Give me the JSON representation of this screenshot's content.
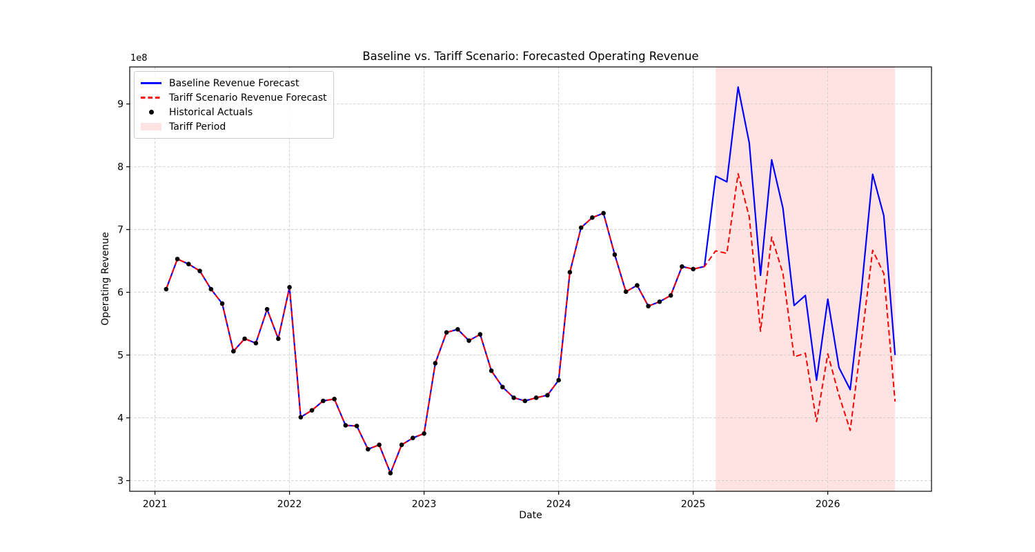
{
  "chart_data": {
    "type": "line",
    "title": "Baseline vs. Tariff Scenario: Forecasted Operating Revenue",
    "xlabel": "Date",
    "ylabel": "Operating Revenue",
    "y_offset_label": "1e8",
    "y_unit_multiplier": 100000000.0,
    "legend": [
      {
        "label": "Baseline Revenue Forecast",
        "swatch": "line",
        "color": "#0000ff"
      },
      {
        "label": "Tariff Scenario Revenue Forecast",
        "swatch": "dashes",
        "color": "#ff0000"
      },
      {
        "label": "Historical Actuals",
        "swatch": "dot",
        "color": "#000000"
      },
      {
        "label": "Tariff Period",
        "swatch": "patch",
        "color": "#ffe3e3"
      }
    ],
    "legend_position": "upper left",
    "axes": {
      "xticks": [
        "2021",
        "2022",
        "2023",
        "2024",
        "2025",
        "2026"
      ],
      "yticks": [
        "3",
        "4",
        "5",
        "6",
        "7",
        "8",
        "9"
      ],
      "ylim": [
        2.83,
        9.59
      ],
      "xlim_months_from_2021_01": [
        -3.25,
        68.25
      ],
      "grid": true,
      "grid_style": "dashed"
    },
    "tariff_period": {
      "start": "2025-02",
      "end": "2026-06"
    },
    "colors": {
      "baseline_line": "#0000ff",
      "tariff_line": "#ff0000",
      "historical_dot": "#000000",
      "tariff_band": "#ffe3e3",
      "grid": "#cccccc",
      "spine": "#000000",
      "text": "#000000"
    },
    "series": {
      "historical": {
        "name": "Historical Actuals",
        "dates": [
          "2021-01",
          "2021-02",
          "2021-03",
          "2021-04",
          "2021-05",
          "2021-06",
          "2021-07",
          "2021-08",
          "2021-09",
          "2021-10",
          "2021-11",
          "2021-12",
          "2022-01",
          "2022-02",
          "2022-03",
          "2022-04",
          "2022-05",
          "2022-06",
          "2022-07",
          "2022-08",
          "2022-09",
          "2022-10",
          "2022-11",
          "2022-12",
          "2023-01",
          "2023-02",
          "2023-03",
          "2023-04",
          "2023-05",
          "2023-06",
          "2023-07",
          "2023-08",
          "2023-09",
          "2023-10",
          "2023-11",
          "2023-12",
          "2024-01",
          "2024-02",
          "2024-03",
          "2024-04",
          "2024-05",
          "2024-06",
          "2024-07",
          "2024-08",
          "2024-09",
          "2024-10",
          "2024-11",
          "2024-12"
        ],
        "values_1e8": [
          6.05,
          6.53,
          6.45,
          6.34,
          6.05,
          5.82,
          5.06,
          5.26,
          5.19,
          5.73,
          5.26,
          6.08,
          4.01,
          4.12,
          4.27,
          4.3,
          3.88,
          3.87,
          3.5,
          3.57,
          3.12,
          3.57,
          3.68,
          3.75,
          4.87,
          5.36,
          5.41,
          5.23,
          5.33,
          4.75,
          4.49,
          4.32,
          4.27,
          4.32,
          4.36,
          4.6,
          6.32,
          7.03,
          7.19,
          7.26,
          6.6,
          6.01,
          6.11,
          5.78,
          5.85,
          5.95,
          6.41,
          6.37
        ]
      },
      "baseline_forecast": {
        "name": "Baseline Revenue Forecast",
        "dates": [
          "2025-01",
          "2025-02",
          "2025-03",
          "2025-04",
          "2025-05",
          "2025-06",
          "2025-07",
          "2025-08",
          "2025-09",
          "2025-10",
          "2025-11",
          "2025-12",
          "2026-01",
          "2026-02",
          "2026-03",
          "2026-04",
          "2026-05",
          "2026-06"
        ],
        "values_1e8": [
          6.41,
          7.85,
          7.76,
          9.27,
          8.38,
          6.27,
          8.11,
          7.34,
          5.79,
          5.95,
          4.6,
          5.89,
          4.8,
          4.45,
          6.02,
          7.88,
          7.22,
          5.0
        ]
      },
      "tariff_forecast": {
        "name": "Tariff Scenario Revenue Forecast",
        "dates": [
          "2025-01",
          "2025-02",
          "2025-03",
          "2025-04",
          "2025-05",
          "2025-06",
          "2025-07",
          "2025-08",
          "2025-09",
          "2025-10",
          "2025-11",
          "2025-12",
          "2026-01",
          "2026-02",
          "2026-03",
          "2026-04",
          "2026-05",
          "2026-06"
        ],
        "values_1e8": [
          6.41,
          6.66,
          6.62,
          7.89,
          7.2,
          5.38,
          6.88,
          6.3,
          4.97,
          5.03,
          3.94,
          5.02,
          4.36,
          3.8,
          5.22,
          6.67,
          6.3,
          4.26
        ]
      }
    }
  }
}
